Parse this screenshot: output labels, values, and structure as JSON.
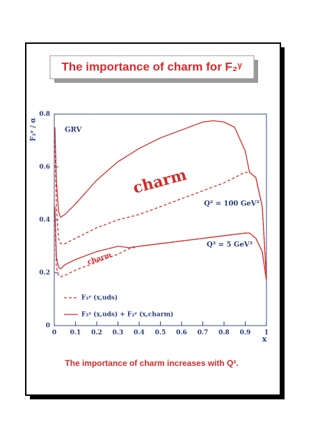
{
  "chart_data": {
    "type": "line",
    "title": "The importance of charm for F₂ᵞ",
    "footer": "The importance of charm increases with Q².",
    "y_label": "F₂ᵞ / α",
    "x_label": "x",
    "x": [
      0.003,
      0.01,
      0.02,
      0.03,
      0.05,
      0.1,
      0.2,
      0.3,
      0.35,
      0.4,
      0.5,
      0.6,
      0.7,
      0.75,
      0.8,
      0.85,
      0.9,
      0.92,
      0.95,
      0.98,
      1.0
    ],
    "legend": [
      {
        "label": "F₂ᵞ (x,uds)",
        "dashed": true
      },
      {
        "label": "F₂ᵞ (x,uds) + F₂ᵞ (x,charm)",
        "dashed": false
      }
    ],
    "series": [
      {
        "group": 1,
        "color": "#d42a2a",
        "values": [
          0.75,
          0.55,
          0.43,
          0.41,
          0.42,
          0.46,
          0.55,
          0.62,
          0.645,
          0.67,
          0.71,
          0.74,
          0.77,
          0.775,
          0.77,
          0.75,
          0.66,
          0.58,
          0.56,
          0.45,
          0.18
        ]
      },
      {
        "group": 0,
        "color": "#d42a2a",
        "values": [
          0.7,
          0.45,
          0.33,
          0.31,
          0.31,
          0.33,
          0.37,
          0.4,
          0.41,
          0.42,
          0.45,
          0.48,
          0.51,
          0.525,
          0.54,
          0.56,
          0.58,
          0.58,
          0.56,
          0.45,
          0.18
        ]
      },
      {
        "group": 1,
        "color": "#d42a2a",
        "values": [
          0.45,
          0.26,
          0.22,
          0.215,
          0.23,
          0.25,
          0.28,
          0.3,
          0.295,
          0.3,
          0.31,
          0.32,
          0.33,
          0.335,
          0.34,
          0.345,
          0.35,
          0.35,
          0.33,
          0.28,
          0.17
        ]
      },
      {
        "group": 0,
        "color": "#d42a2a",
        "values": [
          0.42,
          0.22,
          0.19,
          0.185,
          0.19,
          0.21,
          0.24,
          0.27,
          0.29,
          0.3,
          0.31,
          0.32,
          0.33,
          0.335,
          0.34,
          0.345,
          0.35,
          0.35,
          0.33,
          0.28,
          0.17
        ]
      }
    ],
    "annotations": [
      "GRV",
      "charm",
      "charm",
      "Q² = 100 GeV²",
      "Q² = 5 GeV²"
    ],
    "xlim": [
      0,
      1
    ],
    "ylim": [
      0,
      0.8
    ],
    "xticks": [
      0,
      0.1,
      0.2,
      0.3,
      0.4,
      0.5,
      0.6,
      0.7,
      0.8,
      0.9,
      1
    ],
    "yticks": [
      0,
      0.2,
      0.4,
      0.6,
      0.8
    ]
  }
}
